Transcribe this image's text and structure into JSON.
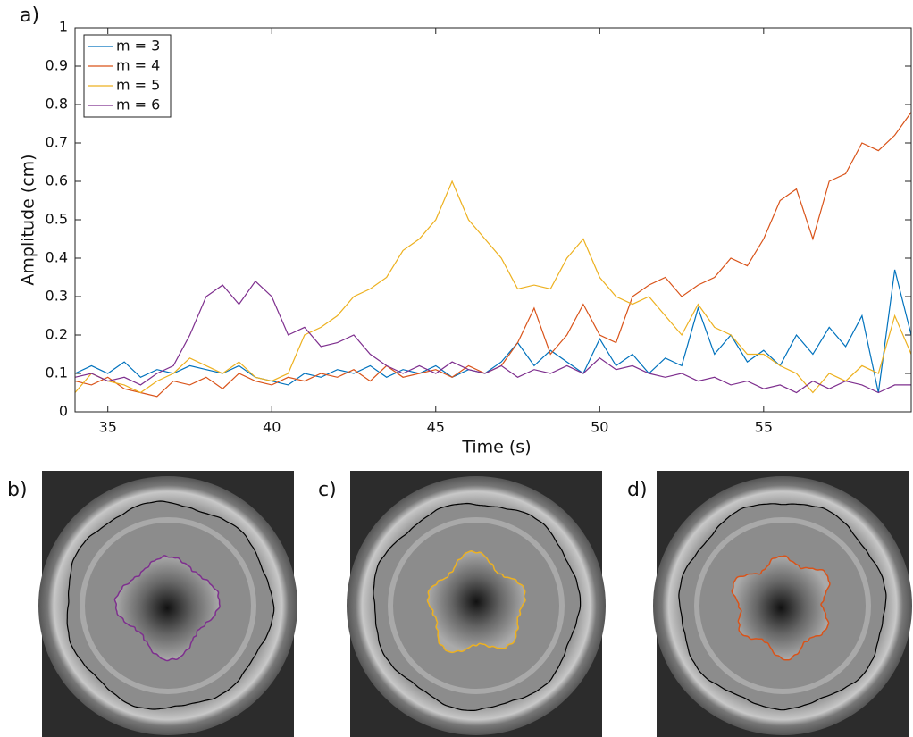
{
  "chart_data": {
    "type": "line",
    "xlabel": "Time (s)",
    "ylabel": "Amplitude (cm)",
    "x": [
      34,
      34.5,
      35,
      35.5,
      36,
      36.5,
      37,
      37.5,
      38,
      38.5,
      39,
      39.5,
      40,
      40.5,
      41,
      41.5,
      42,
      42.5,
      43,
      43.5,
      44,
      44.5,
      45,
      45.5,
      46,
      46.5,
      47,
      47.5,
      48,
      48.5,
      49,
      49.5,
      50,
      50.5,
      51,
      51.5,
      52,
      52.5,
      53,
      53.5,
      54,
      54.5,
      55,
      55.5,
      56,
      56.5,
      57,
      57.5,
      58,
      58.5,
      59,
      59.5
    ],
    "series": [
      {
        "name": "m = 3",
        "color": "#0072bd",
        "values": [
          0.1,
          0.12,
          0.1,
          0.13,
          0.09,
          0.11,
          0.1,
          0.12,
          0.11,
          0.1,
          0.12,
          0.09,
          0.08,
          0.07,
          0.1,
          0.09,
          0.11,
          0.1,
          0.12,
          0.09,
          0.11,
          0.1,
          0.12,
          0.09,
          0.11,
          0.1,
          0.13,
          0.18,
          0.12,
          0.16,
          0.13,
          0.1,
          0.19,
          0.12,
          0.15,
          0.1,
          0.14,
          0.12,
          0.27,
          0.15,
          0.2,
          0.13,
          0.16,
          0.12,
          0.2,
          0.15,
          0.22,
          0.17,
          0.25,
          0.05,
          0.37,
          0.2
        ]
      },
      {
        "name": "m = 4",
        "color": "#d95319",
        "values": [
          0.08,
          0.07,
          0.09,
          0.06,
          0.05,
          0.04,
          0.08,
          0.07,
          0.09,
          0.06,
          0.1,
          0.08,
          0.07,
          0.09,
          0.08,
          0.1,
          0.09,
          0.11,
          0.08,
          0.12,
          0.09,
          0.1,
          0.11,
          0.09,
          0.12,
          0.1,
          0.12,
          0.18,
          0.27,
          0.15,
          0.2,
          0.28,
          0.2,
          0.18,
          0.3,
          0.33,
          0.35,
          0.3,
          0.33,
          0.35,
          0.4,
          0.38,
          0.45,
          0.55,
          0.58,
          0.45,
          0.6,
          0.62,
          0.7,
          0.68,
          0.72,
          0.78
        ]
      },
      {
        "name": "m = 5",
        "color": "#edb120",
        "values": [
          0.05,
          0.1,
          0.08,
          0.07,
          0.05,
          0.08,
          0.1,
          0.14,
          0.12,
          0.1,
          0.13,
          0.09,
          0.08,
          0.1,
          0.2,
          0.22,
          0.25,
          0.3,
          0.32,
          0.35,
          0.42,
          0.45,
          0.5,
          0.6,
          0.5,
          0.45,
          0.4,
          0.32,
          0.33,
          0.32,
          0.4,
          0.45,
          0.35,
          0.3,
          0.28,
          0.3,
          0.25,
          0.2,
          0.28,
          0.22,
          0.2,
          0.15,
          0.15,
          0.12,
          0.1,
          0.05,
          0.1,
          0.08,
          0.12,
          0.1,
          0.25,
          0.15
        ]
      },
      {
        "name": "m = 6",
        "color": "#7e2f8e",
        "values": [
          0.09,
          0.1,
          0.08,
          0.09,
          0.07,
          0.1,
          0.12,
          0.2,
          0.3,
          0.33,
          0.28,
          0.34,
          0.3,
          0.2,
          0.22,
          0.17,
          0.18,
          0.2,
          0.15,
          0.12,
          0.1,
          0.12,
          0.1,
          0.13,
          0.11,
          0.1,
          0.12,
          0.09,
          0.11,
          0.1,
          0.12,
          0.1,
          0.14,
          0.11,
          0.12,
          0.1,
          0.09,
          0.1,
          0.08,
          0.09,
          0.07,
          0.08,
          0.06,
          0.07,
          0.05,
          0.08,
          0.06,
          0.08,
          0.07,
          0.05,
          0.07,
          0.07
        ]
      }
    ],
    "xlim": [
      34,
      59.5
    ],
    "xticks": [
      35,
      40,
      45,
      50,
      55
    ],
    "ylim": [
      0,
      1
    ],
    "yticks": [
      0,
      0.1,
      0.2,
      0.3,
      0.4,
      0.5,
      0.6,
      0.7,
      0.8,
      0.9,
      1
    ],
    "legend": "top-left",
    "panel_labels": [
      "a)",
      "b)",
      "c)",
      "d)"
    ]
  }
}
